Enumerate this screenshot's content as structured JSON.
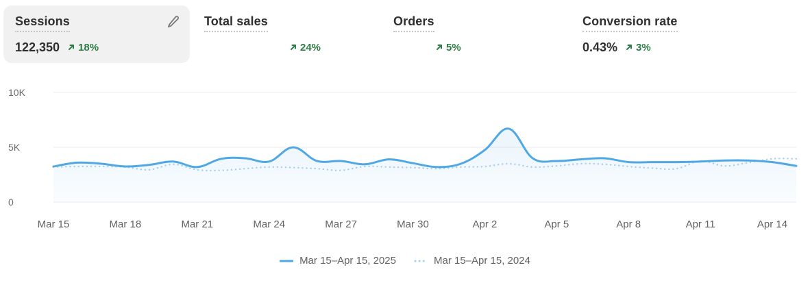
{
  "metrics": [
    {
      "title": "Sessions",
      "value": "122,350",
      "delta": "18%",
      "direction": "up",
      "active": true
    },
    {
      "title": "Total sales",
      "value": "",
      "delta": "24%",
      "direction": "up",
      "active": false
    },
    {
      "title": "Orders",
      "value": "",
      "delta": "5%",
      "direction": "up",
      "active": false
    },
    {
      "title": "Conversion rate",
      "value": "0.43%",
      "delta": "3%",
      "direction": "up",
      "active": false
    }
  ],
  "edit_icon": "pencil-icon",
  "colors": {
    "current": "#4fa8e4",
    "previous": "#a9d1ef",
    "positive": "#2e7d45",
    "grid": "#ebebeb",
    "card_active": "#f1f1f1"
  },
  "legend": {
    "current": "Mar 15–Apr 15, 2025",
    "previous": "Mar 15–Apr 15, 2024"
  },
  "chart_data": {
    "type": "line",
    "title": "Sessions",
    "xlabel": "",
    "ylabel": "",
    "ylim": [
      0,
      10000
    ],
    "yticks": [
      "0",
      "5K",
      "10K"
    ],
    "ytick_values": [
      0,
      5000,
      10000
    ],
    "grid": true,
    "legend_position": "bottom",
    "x": [
      "Mar 15",
      "Mar 16",
      "Mar 17",
      "Mar 18",
      "Mar 19",
      "Mar 20",
      "Mar 21",
      "Mar 22",
      "Mar 23",
      "Mar 24",
      "Mar 25",
      "Mar 26",
      "Mar 27",
      "Mar 28",
      "Mar 29",
      "Mar 30",
      "Mar 31",
      "Apr 1",
      "Apr 2",
      "Apr 3",
      "Apr 4",
      "Apr 5",
      "Apr 6",
      "Apr 7",
      "Apr 8",
      "Apr 9",
      "Apr 10",
      "Apr 11",
      "Apr 12",
      "Apr 13",
      "Apr 14",
      "Apr 15"
    ],
    "xticks": [
      "Mar 15",
      "Mar 18",
      "Mar 21",
      "Mar 24",
      "Mar 27",
      "Mar 30",
      "Apr 2",
      "Apr 5",
      "Apr 8",
      "Apr 11",
      "Apr 14"
    ],
    "series": [
      {
        "name": "Mar 15–Apr 15, 2025",
        "style": "solid",
        "values": [
          3250,
          3600,
          3500,
          3250,
          3400,
          3700,
          3200,
          3950,
          4000,
          3700,
          5000,
          3750,
          3750,
          3450,
          3900,
          3550,
          3200,
          3500,
          4750,
          6700,
          4000,
          3750,
          3900,
          4000,
          3650,
          3650,
          3650,
          3700,
          3800,
          3800,
          3650,
          3300
        ]
      },
      {
        "name": "Mar 15–Apr 15, 2024",
        "style": "dotted",
        "values": [
          3200,
          3250,
          3250,
          3200,
          2950,
          3450,
          2950,
          2900,
          3050,
          3200,
          3150,
          3050,
          2900,
          3250,
          3200,
          3150,
          3050,
          3200,
          3250,
          3500,
          3200,
          3300,
          3500,
          3450,
          3250,
          3100,
          3050,
          3750,
          3300,
          3600,
          3950,
          3950
        ]
      }
    ]
  }
}
